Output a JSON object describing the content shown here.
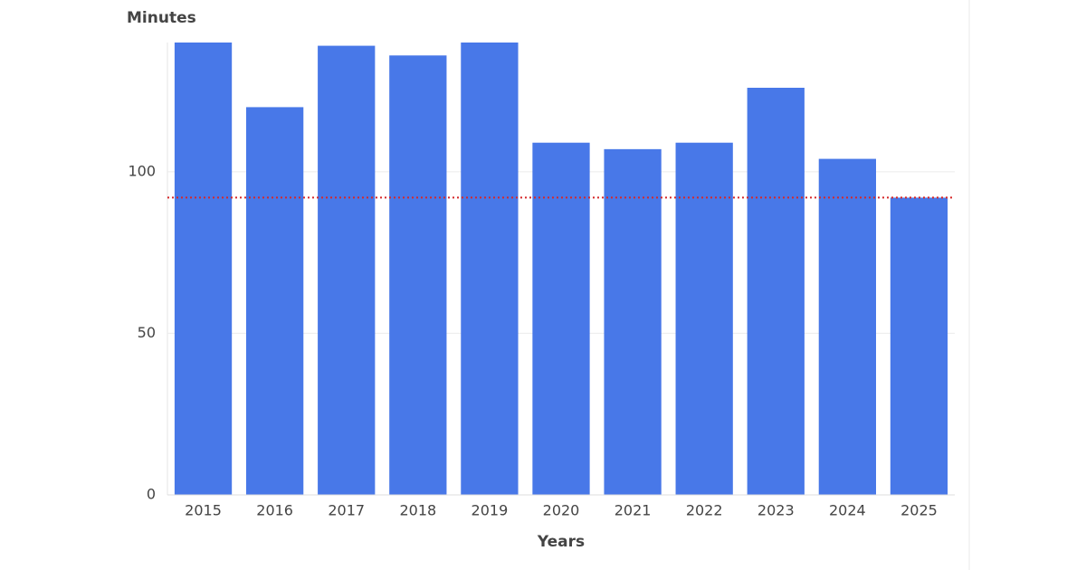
{
  "chart_data": {
    "type": "bar",
    "y_label": "Minutes",
    "x_label": "Years",
    "categories": [
      "2015",
      "2016",
      "2017",
      "2018",
      "2019",
      "2020",
      "2021",
      "2022",
      "2023",
      "2024",
      "2025"
    ],
    "values": [
      140,
      120,
      139,
      136,
      140,
      109,
      107,
      109,
      126,
      104,
      92
    ],
    "color": "#4878e8",
    "ylim": [
      0,
      140
    ],
    "yticks": [
      0,
      50,
      100
    ],
    "grid": true,
    "reference_line": {
      "value": 92,
      "color": "#d62728"
    }
  }
}
